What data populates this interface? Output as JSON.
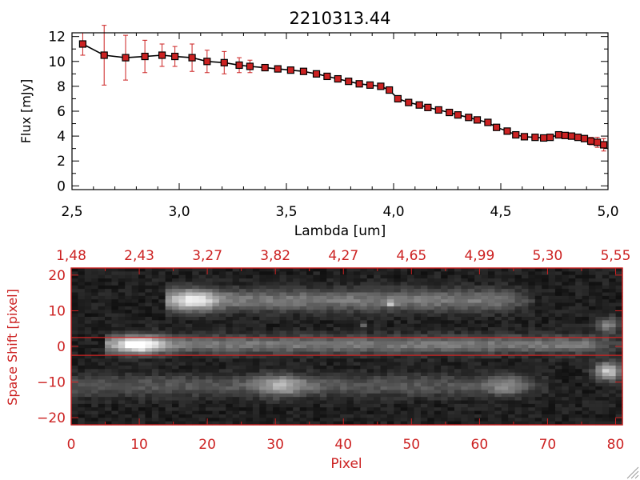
{
  "chart_data": [
    {
      "type": "scatter",
      "title": "2210313.44",
      "xlabel": "Lambda [um]",
      "ylabel": "Flux [mJy]",
      "xlim": [
        2.5,
        5.0
      ],
      "ylim": [
        -0.3,
        12.3
      ],
      "xticks": [
        2.5,
        3.0,
        3.5,
        4.0,
        4.5,
        5.0
      ],
      "xtick_labels": [
        "2,5",
        "3,0",
        "3,5",
        "4,0",
        "4,5",
        "5,0"
      ],
      "yticks": [
        0,
        2,
        4,
        6,
        8,
        10,
        12
      ],
      "ytick_labels": [
        "0",
        "2",
        "4",
        "6",
        "8",
        "10",
        "12"
      ],
      "series": [
        {
          "name": "flux",
          "line_color": "#000000",
          "marker_color": "#cc2222",
          "errorbar_color": "#cc2222",
          "x": [
            2.55,
            2.65,
            2.75,
            2.84,
            2.92,
            2.98,
            3.06,
            3.13,
            3.21,
            3.28,
            3.33,
            3.4,
            3.46,
            3.52,
            3.58,
            3.64,
            3.69,
            3.74,
            3.79,
            3.84,
            3.89,
            3.94,
            3.98,
            4.02,
            4.07,
            4.12,
            4.16,
            4.21,
            4.26,
            4.3,
            4.35,
            4.39,
            4.44,
            4.48,
            4.53,
            4.57,
            4.61,
            4.66,
            4.7,
            4.73,
            4.77,
            4.8,
            4.83,
            4.86,
            4.89,
            4.92,
            4.95,
            4.98
          ],
          "y": [
            11.4,
            10.5,
            10.3,
            10.4,
            10.5,
            10.4,
            10.3,
            10.0,
            9.9,
            9.7,
            9.6,
            9.5,
            9.4,
            9.3,
            9.2,
            9.0,
            8.8,
            8.6,
            8.4,
            8.2,
            8.1,
            8.0,
            7.7,
            7.0,
            6.7,
            6.5,
            6.3,
            6.1,
            5.9,
            5.7,
            5.5,
            5.3,
            5.1,
            4.7,
            4.4,
            4.1,
            3.95,
            3.9,
            3.85,
            3.9,
            4.1,
            4.05,
            4.0,
            3.9,
            3.8,
            3.6,
            3.5,
            3.3
          ],
          "yerr": [
            0.9,
            2.4,
            1.8,
            1.3,
            0.9,
            0.8,
            1.1,
            0.9,
            0.9,
            0.6,
            0.5,
            0.2,
            0.2,
            0.2,
            0.2,
            0.2,
            0.2,
            0.2,
            0.2,
            0.2,
            0.2,
            0.2,
            0.2,
            0.2,
            0.2,
            0.2,
            0.2,
            0.2,
            0.2,
            0.2,
            0.2,
            0.2,
            0.2,
            0.2,
            0.2,
            0.2,
            0.2,
            0.2,
            0.2,
            0.2,
            0.2,
            0.2,
            0.2,
            0.2,
            0.2,
            0.3,
            0.4,
            0.5
          ]
        }
      ]
    },
    {
      "type": "heatmap",
      "xlabel": "Pixel",
      "ylabel": "Space Shift [pixel]",
      "colormap": "grayscale",
      "xlim": [
        0,
        81
      ],
      "ylim": [
        -22,
        22
      ],
      "xticks": [
        0,
        10,
        20,
        30,
        40,
        50,
        60,
        70,
        80
      ],
      "xtick_labels": [
        "0",
        "10",
        "20",
        "30",
        "40",
        "50",
        "60",
        "70",
        "80"
      ],
      "yticks": [
        -20,
        -10,
        0,
        10,
        20
      ],
      "ytick_labels": [
        "−20",
        "−10",
        "0",
        "10",
        "20"
      ],
      "top_axis_tick_labels": [
        "1,48",
        "2,43",
        "3,27",
        "3,82",
        "4,27",
        "4,65",
        "4,99",
        "5,30",
        "5,55"
      ],
      "extraction_window": [
        -2.5,
        2.5
      ],
      "traces": [
        {
          "name": "central",
          "y_center": 0.5,
          "width": 2.5,
          "x_start": 5,
          "x_end": 81,
          "peak_x": 10,
          "peak": 1.0,
          "tail": 0.35
        },
        {
          "name": "upper",
          "y_center": 13,
          "width": 3,
          "x_start": 14,
          "x_end": 68,
          "peak_x": 18,
          "peak": 0.85,
          "tail": 0.35
        },
        {
          "name": "lower",
          "y_center": -11,
          "width": 3,
          "x_start": 0,
          "x_end": 70,
          "peak_x": 31,
          "peak": 0.6,
          "tail": 0.22
        }
      ],
      "blobs": [
        {
          "x": 79,
          "y": -7,
          "w": 2,
          "h": 2.5,
          "i": 0.7
        },
        {
          "x": 79,
          "y": 6,
          "w": 1.6,
          "h": 2.2,
          "i": 0.4
        },
        {
          "x": 47,
          "y": 12,
          "w": 0.7,
          "h": 0.7,
          "i": 0.5
        },
        {
          "x": 43,
          "y": 6,
          "w": 0.7,
          "h": 0.7,
          "i": 0.3
        },
        {
          "x": 64,
          "y": -11,
          "w": 2.5,
          "h": 2.5,
          "i": 0.25
        }
      ]
    }
  ]
}
